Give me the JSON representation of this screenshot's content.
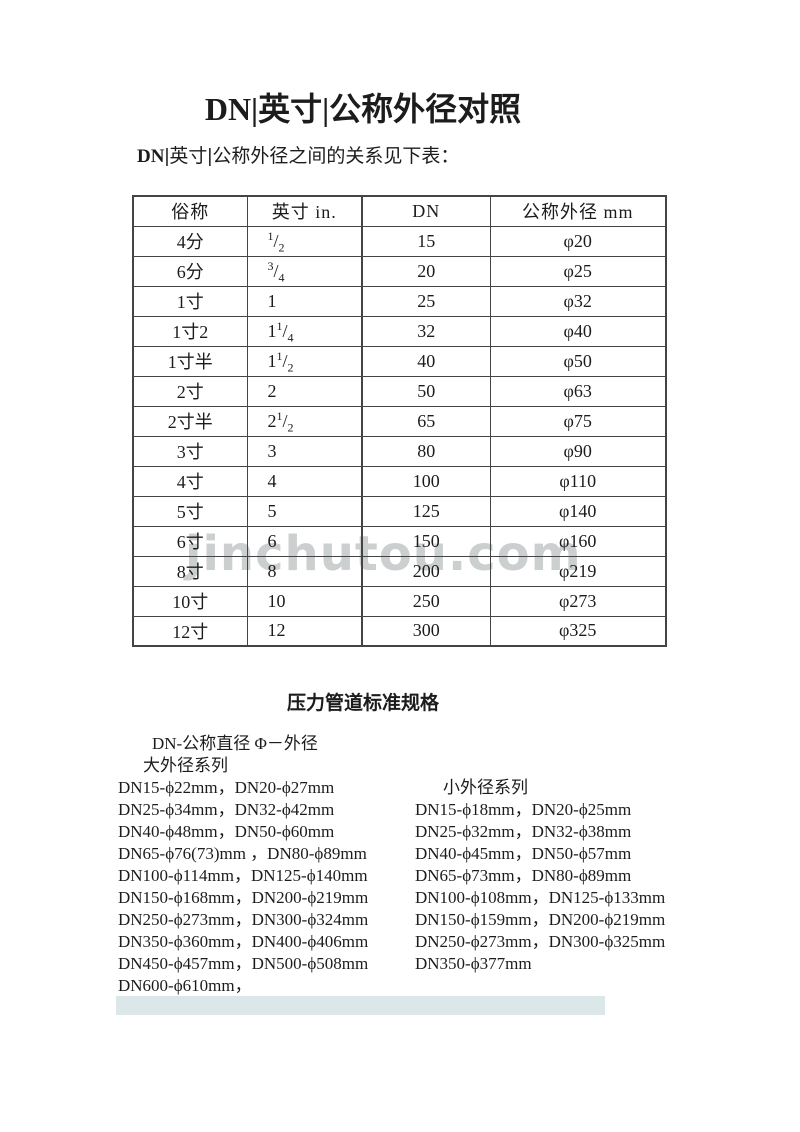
{
  "page": {
    "title": "DN|英寸|公称外径对照",
    "subtitle_prefix": "DN",
    "subtitle_rest": "|英寸|公称外径之间的关系见下表：",
    "watermark": "jinchutou.com"
  },
  "table": {
    "headers": [
      "俗称",
      "英寸 in.",
      "DN",
      "公称外径 mm"
    ],
    "rows": [
      {
        "name": "4分",
        "inch": {
          "pre": "",
          "num": "1",
          "den": "2"
        },
        "dn": "15",
        "od": "φ20"
      },
      {
        "name": "6分",
        "inch": {
          "pre": "",
          "num": "3",
          "den": "4"
        },
        "dn": "20",
        "od": "φ25"
      },
      {
        "name": "1寸",
        "inch": {
          "pre": "1",
          "num": "",
          "den": ""
        },
        "dn": "25",
        "od": "φ32"
      },
      {
        "name": "1寸2",
        "inch": {
          "pre": "1",
          "num": "1",
          "den": "4"
        },
        "dn": "32",
        "od": "φ40"
      },
      {
        "name": "1寸半",
        "inch": {
          "pre": "1",
          "num": "1",
          "den": "2"
        },
        "dn": "40",
        "od": "φ50"
      },
      {
        "name": "2寸",
        "inch": {
          "pre": "2",
          "num": "",
          "den": ""
        },
        "dn": "50",
        "od": "φ63"
      },
      {
        "name": "2寸半",
        "inch": {
          "pre": "2",
          "num": "1",
          "den": "2"
        },
        "dn": "65",
        "od": "φ75"
      },
      {
        "name": "3寸",
        "inch": {
          "pre": "3",
          "num": "",
          "den": ""
        },
        "dn": "80",
        "od": "φ90"
      },
      {
        "name": "4寸",
        "inch": {
          "pre": "4",
          "num": "",
          "den": ""
        },
        "dn": "100",
        "od": "φ110"
      },
      {
        "name": "5寸",
        "inch": {
          "pre": "5",
          "num": "",
          "den": ""
        },
        "dn": "125",
        "od": "φ140"
      },
      {
        "name": "6寸",
        "inch": {
          "pre": "6",
          "num": "",
          "den": ""
        },
        "dn": "150",
        "od": "φ160"
      },
      {
        "name": "8寸",
        "inch": {
          "pre": "8",
          "num": "",
          "den": ""
        },
        "dn": "200",
        "od": "φ219"
      },
      {
        "name": "10寸",
        "inch": {
          "pre": "10",
          "num": "",
          "den": ""
        },
        "dn": "250",
        "od": "φ273"
      },
      {
        "name": "12寸",
        "inch": {
          "pre": "12",
          "num": "",
          "den": ""
        },
        "dn": "300",
        "od": "φ325"
      }
    ]
  },
  "section": {
    "heading": "压力管道标准规格",
    "note": "DN-公称直径 Φ－外径",
    "large_series_title": "大外径系列",
    "small_series_title": "小外径系列",
    "large_series": [
      "DN15-ϕ22mm，DN20-ϕ27mm",
      "DN25-ϕ34mm，DN32-ϕ42mm",
      "DN40-ϕ48mm，DN50-ϕ60mm",
      "DN65-ϕ76(73)mm ，DN80-ϕ89mm",
      "DN100-ϕ114mm，DN125-ϕ140mm",
      "DN150-ϕ168mm，DN200-ϕ219mm",
      "DN250-ϕ273mm，DN300-ϕ324mm",
      "DN350-ϕ360mm，DN400-ϕ406mm",
      "DN450-ϕ457mm，DN500-ϕ508mm",
      "DN600-ϕ610mm，"
    ],
    "small_series": [
      "DN15-ϕ18mm，DN20-ϕ25mm",
      "DN25-ϕ32mm，DN32-ϕ38mm",
      "DN40-ϕ45mm，DN50-ϕ57mm",
      "DN65-ϕ73mm，DN80-ϕ89mm",
      "DN100-ϕ108mm，DN125-ϕ133mm",
      "DN150-ϕ159mm，DN200-ϕ219mm",
      "DN250-ϕ273mm，DN300-ϕ325mm",
      "DN350-ϕ377mm"
    ]
  },
  "colors": {
    "footer_bar": "#dbe7e8",
    "watermark": "#c3c7c8",
    "table_border": "#444444",
    "text": "#1c1c1c"
  }
}
